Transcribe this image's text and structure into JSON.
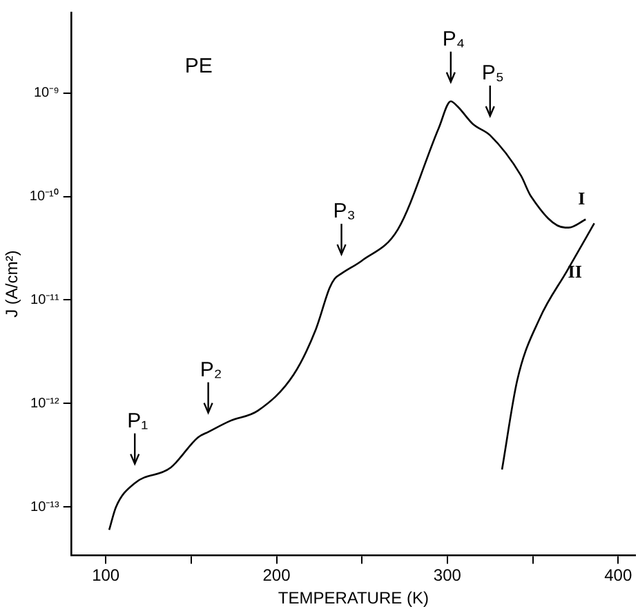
{
  "chart_data": {
    "type": "line",
    "title": "PE",
    "xlabel": "TEMPERATURE (K)",
    "ylabel": "J (A/cm²)",
    "log": "y",
    "grid": false,
    "legend": false,
    "marker": "none",
    "line_style": "solid",
    "xlim": [
      80,
      410
    ],
    "xticks": [
      100,
      {
        "value": 150,
        "label": null
      },
      200,
      {
        "value": 250,
        "label": null
      },
      300,
      {
        "value": 350,
        "label": null
      },
      400
    ],
    "ylim": [
      3.4e-14,
      6e-09
    ],
    "yticks": [
      {
        "value": 1e-13,
        "label": "10⁻¹³"
      },
      {
        "value": 1e-12,
        "label": "10⁻¹²"
      },
      {
        "value": 1e-11,
        "label": "10⁻¹¹"
      },
      {
        "value": 1e-10,
        "label": "10⁻¹⁰"
      },
      {
        "value": 1e-09,
        "label": "10⁻⁹"
      }
    ],
    "series": [
      {
        "name": "I",
        "color": "#000000",
        "x": [
          102,
          106,
          117,
          138,
          154,
          160,
          173,
          189,
          210,
          223,
          231,
          234,
          238,
          250,
          271,
          295,
          302,
          306,
          315,
          325,
          343,
          349,
          369,
          371,
          381
        ],
        "values": [
          6e-14,
          1e-13,
          1.7e-13,
          2.4e-13,
          4.7e-13,
          5.3e-13,
          6.8e-13,
          8.5e-13,
          1.9e-12,
          5.2e-12,
          1.3e-11,
          1.6e-11,
          1.8e-11,
          2.4e-11,
          4.8e-11,
          4.6e-10,
          8.3e-10,
          7.4e-10,
          5e-10,
          3.9e-10,
          1.6e-10,
          1e-10,
          5e-11,
          5e-11,
          6e-11
        ]
      },
      {
        "name": "II",
        "color": "#000000",
        "x": [
          332,
          341,
          354,
          370,
          386
        ],
        "values": [
          2.3e-13,
          1.7e-12,
          6.6e-12,
          1.9e-11,
          5.5e-11
        ]
      }
    ],
    "annotations": [
      {
        "text": "P₁",
        "x": 117,
        "y": 1.7e-13
      },
      {
        "text": "P₂",
        "x": 160,
        "y": 5.3e-13
      },
      {
        "text": "P₃",
        "x": 238,
        "y": 1.8e-11
      },
      {
        "text": "P₄",
        "x": 302,
        "y": 8.3e-10
      },
      {
        "text": "P₅",
        "x": 325,
        "y": 3.9e-10
      }
    ]
  }
}
